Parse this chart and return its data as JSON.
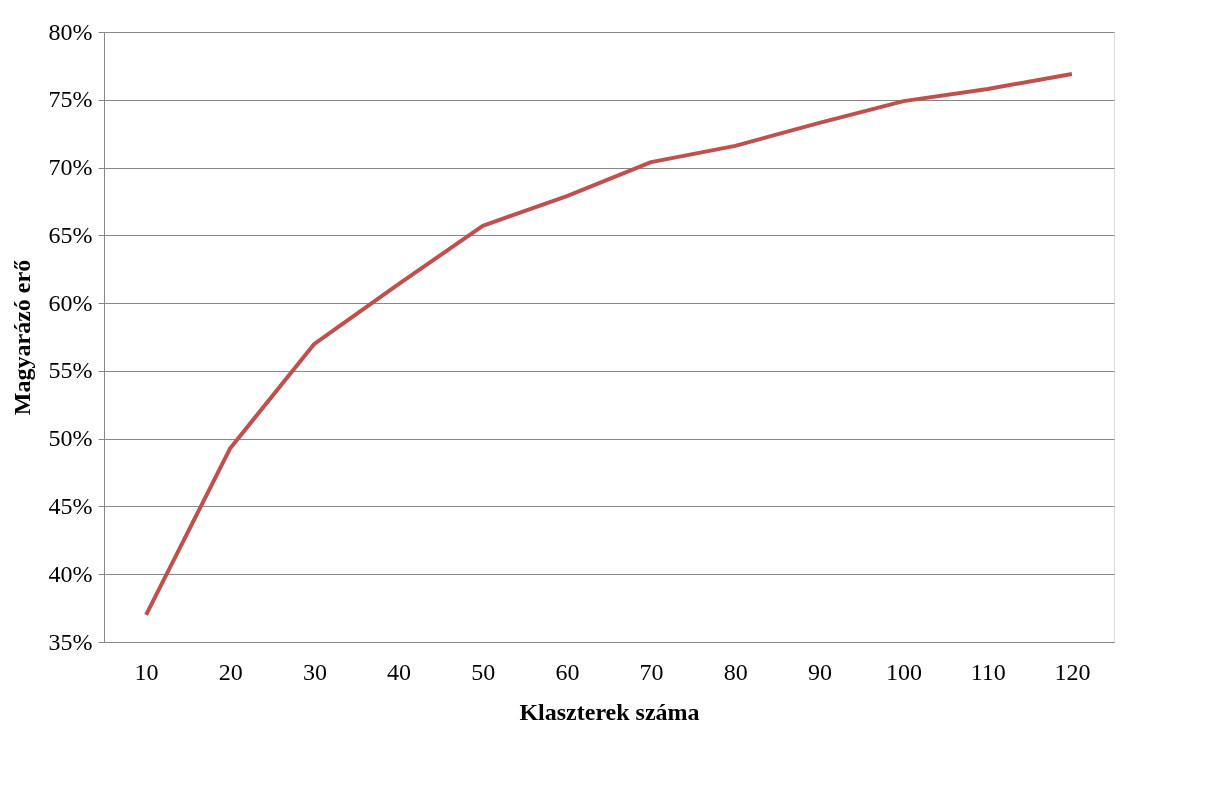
{
  "chart_data": {
    "type": "line",
    "xlabel": "Klaszterek száma",
    "ylabel": "Magyarázó erő",
    "categories": [
      "10",
      "20",
      "30",
      "40",
      "50",
      "60",
      "70",
      "80",
      "90",
      "100",
      "110",
      "120"
    ],
    "series": [
      {
        "color": "#c0504d",
        "values": [
          0.37,
          0.493,
          0.57,
          0.614,
          0.657,
          0.679,
          0.704,
          0.716,
          0.733,
          0.749,
          0.758,
          0.769
        ]
      }
    ],
    "ylim": [
      0.35,
      0.8
    ],
    "yticks": [
      {
        "value": 0.35,
        "label": "35%"
      },
      {
        "value": 0.4,
        "label": "40%"
      },
      {
        "value": 0.45,
        "label": "45%"
      },
      {
        "value": 0.5,
        "label": "50%"
      },
      {
        "value": 0.55,
        "label": "55%"
      },
      {
        "value": 0.6,
        "label": "60%"
      },
      {
        "value": 0.65,
        "label": "65%"
      },
      {
        "value": 0.7,
        "label": "70%"
      },
      {
        "value": 0.75,
        "label": "75%"
      },
      {
        "value": 0.8,
        "label": "80%"
      }
    ],
    "grid": "y",
    "marker": "none",
    "line_style": "solid"
  }
}
